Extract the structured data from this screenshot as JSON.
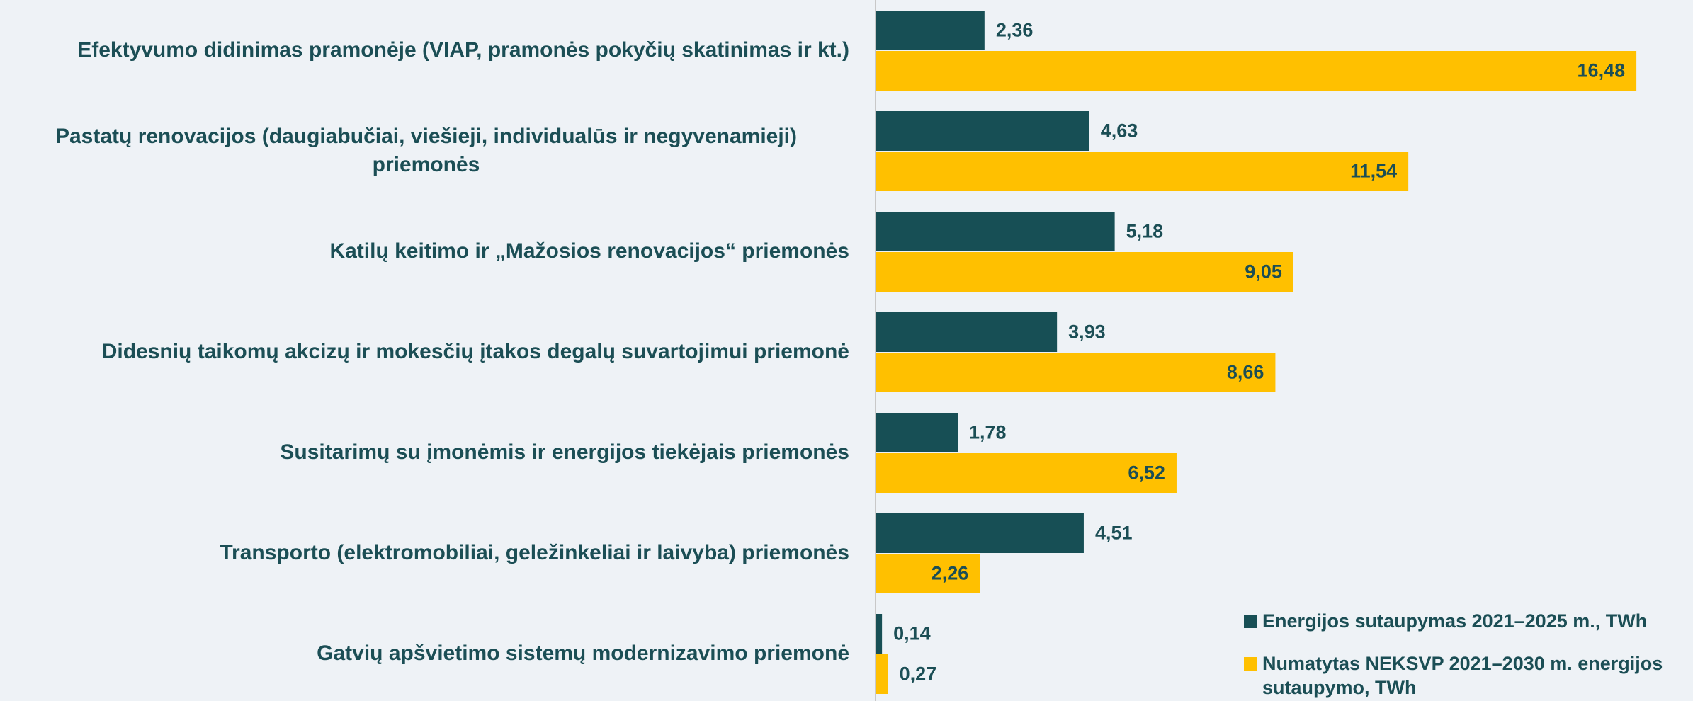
{
  "chart_data": {
    "type": "hbar",
    "categories": [
      "Efektyvumo didinimas pramonėje (VIAP, pramonės pokyčių skatinimas ir kt.)",
      "Pastatų renovacijos (daugiabučiai, viešieji, individualūs ir negyvenamieji) priemonės",
      "Katilų keitimo ir „Mažosios renovacijos“ priemonės",
      "Didesnių taikomų akcizų ir mokesčių įtakos degalų suvartojimui priemonė",
      "Susitarimų su įmonėmis ir energijos tiekėjais priemonės",
      "Transporto (elektromobiliai, geležinkeliai ir laivyba) priemonės",
      "Gatvių apšvietimo sistemų modernizavimo priemonė"
    ],
    "series": [
      {
        "name": "Energijos sutaupymas 2021–2025 m., TWh",
        "color": "#174f55",
        "values": [
          2.36,
          4.63,
          5.18,
          3.93,
          1.78,
          4.51,
          0.14
        ],
        "value_labels": [
          "2,36",
          "4,63",
          "5,18",
          "3,93",
          "1,78",
          "4,51",
          "0,14"
        ]
      },
      {
        "name": "Numatytas NEKSVP 2021–2030 m. energijos sutaupymo, TWh",
        "color": "#ffc000",
        "values": [
          16.48,
          11.54,
          9.05,
          8.66,
          6.52,
          2.26,
          0.27
        ],
        "value_labels": [
          "16,48",
          "11,54",
          "9,05",
          "8,66",
          "6,52",
          "2,26",
          "0,27"
        ]
      }
    ],
    "xlim": [
      0,
      17
    ],
    "legend": "lower right"
  }
}
